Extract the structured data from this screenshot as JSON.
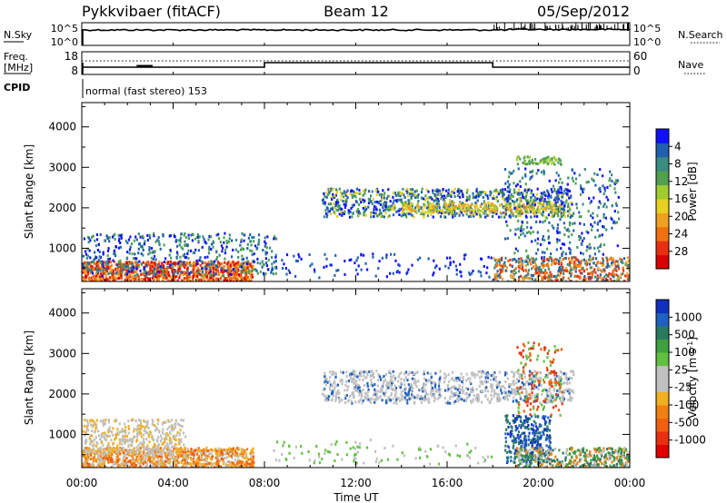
{
  "header": {
    "station": "Pykkvibaer (fitACF)",
    "beam": "Beam 12",
    "date": "05/Sep/2012"
  },
  "noise_panel": {
    "left_label": "N.Sky",
    "right_label": "N.Search",
    "left_ticks": [
      "10^5",
      "10^0"
    ],
    "right_ticks": [
      "10^5",
      "10^0"
    ]
  },
  "freq_panel": {
    "left_label_line1": "Freq.",
    "left_label_line2": "[MHz]",
    "right_label": "Nave",
    "left_ticks": [
      "18",
      "8"
    ],
    "right_ticks": [
      "60",
      "0"
    ]
  },
  "cpid": {
    "label": "CPID",
    "text": "normal (fast stereo) 153"
  },
  "chart_data": [
    {
      "type": "heatmap",
      "parameter": "Power",
      "ylabel": "Slant Range [km]",
      "ylim": [
        180,
        4600
      ],
      "yticks": [
        "1000",
        "2000",
        "3000",
        "4000"
      ],
      "colorbar_label": "Power [dB]",
      "colorbar_ticks": [
        "4",
        "8",
        "12",
        "16",
        "20",
        "24",
        "28"
      ],
      "colorbar_colors": [
        "#1010ff",
        "#2060b0",
        "#3a8c80",
        "#50a050",
        "#a0cc30",
        "#e8d020",
        "#f0a020",
        "#f07010",
        "#e83010",
        "#d80000"
      ]
    },
    {
      "type": "heatmap",
      "parameter": "Velocity",
      "ylabel": "Slant Range [km]",
      "ylim": [
        180,
        4600
      ],
      "yticks": [
        "1000",
        "2000",
        "3000",
        "4000"
      ],
      "colorbar_label": "Velocity [m s",
      "colorbar_label_sup": "-1",
      "colorbar_label_end": "]",
      "colorbar_ticks": [
        "1000",
        "500",
        "100",
        "25",
        "-25",
        "-100",
        "-500",
        "-1000"
      ],
      "colorbar_colors": [
        "#1030c0",
        "#2060c0",
        "#2a7a60",
        "#40a040",
        "#60c040",
        "#c0c0c0",
        "#c0c0c0",
        "#f0b020",
        "#f08010",
        "#f06010",
        "#e83010",
        "#e00000"
      ]
    }
  ],
  "xaxis": {
    "label": "Time UT",
    "ticks": [
      "00:00",
      "04:00",
      "08:00",
      "12:00",
      "16:00",
      "20:00",
      "00:00"
    ]
  },
  "colors": {
    "axis": "#000000",
    "grey_scatter": "#c0c0c0"
  }
}
